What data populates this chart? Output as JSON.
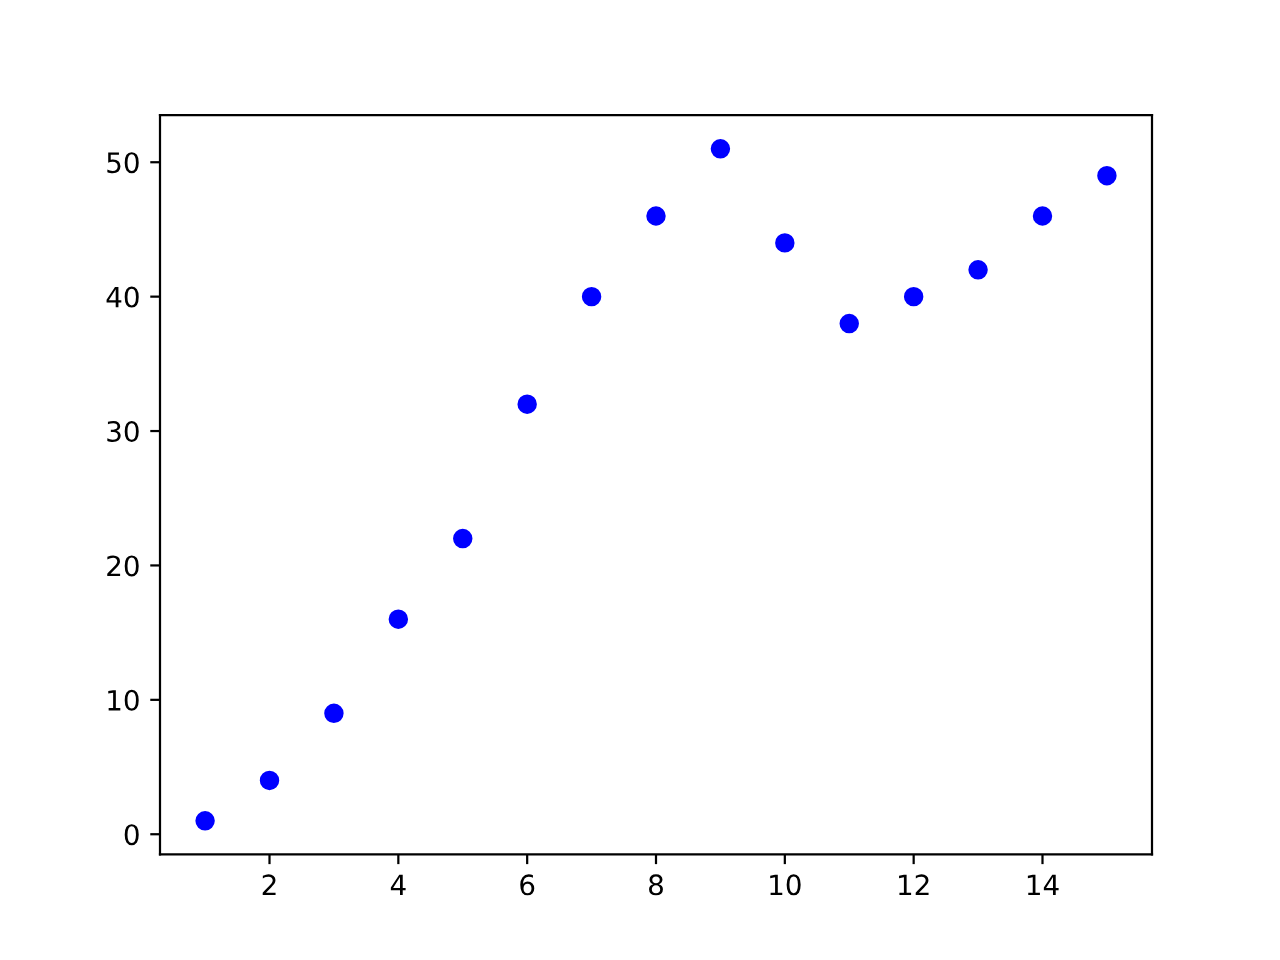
{
  "chart_data": {
    "type": "scatter",
    "x": [
      1,
      2,
      3,
      4,
      5,
      6,
      7,
      8,
      9,
      10,
      11,
      12,
      13,
      14,
      15
    ],
    "values": [
      1,
      4,
      9,
      16,
      22,
      32,
      40,
      46,
      51,
      44,
      38,
      40,
      42,
      46,
      49
    ],
    "color": "#0000ff",
    "marker": "circle",
    "xlim": [
      0.3,
      15.7
    ],
    "ylim": [
      -1.5,
      53.5
    ],
    "xticks": [
      2,
      4,
      6,
      8,
      10,
      12,
      14
    ],
    "yticks": [
      0,
      10,
      20,
      30,
      40,
      50
    ],
    "grid": false
  }
}
